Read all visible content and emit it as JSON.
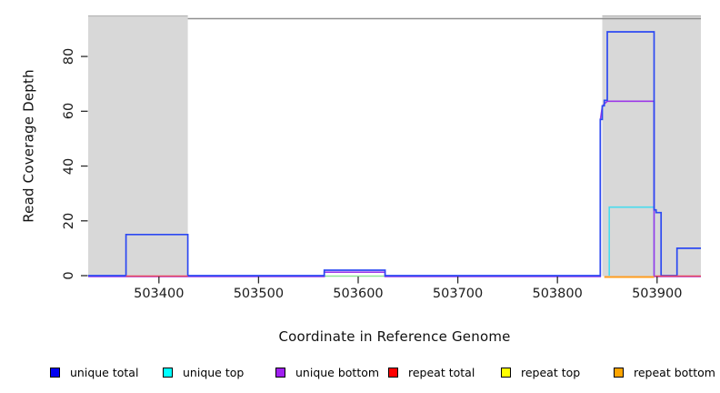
{
  "chart_data": {
    "type": "area",
    "title": "",
    "xlabel": "Coordinate in Reference Genome",
    "ylabel": "Read Coverage Depth",
    "xlim": [
      503329,
      503944
    ],
    "ylim": [
      0,
      94.8
    ],
    "x_ticks": [
      503400,
      503500,
      503600,
      503700,
      503800,
      503900
    ],
    "y_ticks": [
      0,
      20,
      40,
      60,
      80
    ],
    "grid": false,
    "legend_position": "bottom",
    "shade_color": "#d8d8d8",
    "shade_edge_color": "#b5b5b5",
    "frame_color": "#8f8f8f",
    "tick_color": "#2b2b2b",
    "shaded_regions": [
      {
        "x0": 503329,
        "x1": 503429
      },
      {
        "x0": 503845,
        "x1": 503944
      }
    ],
    "series": [
      {
        "name": "repeat top",
        "legend_color": "#ffff00",
        "plot_color": "#8fe596",
        "line_width": 1.5,
        "dy": 0.5,
        "segments": [
          [
            [
              503566,
              0
            ],
            [
              503627,
              0
            ]
          ]
        ]
      },
      {
        "name": "unique top",
        "legend_color": "#00ffff",
        "plot_color": "#49dcee",
        "line_width": 1.6,
        "dy": 0,
        "segments": [
          [
            [
              503852,
              0
            ],
            [
              503852,
              25
            ],
            [
              503897,
              25
            ],
            [
              503897,
              0
            ]
          ]
        ]
      },
      {
        "name": "unique bottom",
        "legend_color": "#a020f0",
        "plot_color": "#9c39e8",
        "line_width": 1.6,
        "dy": 1,
        "segments": [
          [
            [
              503329,
              0
            ],
            [
              503566,
              0
            ],
            [
              503566,
              1.6
            ],
            [
              503627,
              1.6
            ],
            [
              503627,
              0
            ],
            [
              503843,
              0
            ],
            [
              503843,
              57
            ],
            [
              503845,
              62
            ],
            [
              503847,
              63
            ],
            [
              503850,
              64
            ],
            [
              503897,
              64
            ],
            [
              503897,
              0
            ],
            [
              503944,
              0
            ]
          ]
        ]
      },
      {
        "name": "unique total",
        "legend_color": "#0000f0",
        "plot_color": "#2c49f2",
        "line_width": 1.7,
        "dy": 0,
        "segments": [
          [
            [
              503329,
              0
            ],
            [
              503367,
              0
            ],
            [
              503367,
              15
            ],
            [
              503429,
              15
            ],
            [
              503429,
              0
            ],
            [
              503566,
              0
            ],
            [
              503566,
              2
            ],
            [
              503627,
              2
            ],
            [
              503627,
              0
            ],
            [
              503843,
              0
            ],
            [
              503843,
              57
            ],
            [
              503845,
              57
            ],
            [
              503845,
              62
            ],
            [
              503847,
              62
            ],
            [
              503847,
              64
            ],
            [
              503850,
              64
            ],
            [
              503850,
              89
            ],
            [
              503897,
              89
            ],
            [
              503897,
              24
            ],
            [
              503899,
              24
            ],
            [
              503899,
              23
            ],
            [
              503904,
              23
            ],
            [
              503904,
              0
            ],
            [
              503920,
              0
            ],
            [
              503920,
              10
            ],
            [
              503944,
              10
            ]
          ]
        ]
      },
      {
        "name": "repeat bottom",
        "legend_color": "#ffa500",
        "plot_color": "#ff9d1f",
        "line_width": 2,
        "dy": 1.5,
        "segments": [
          [
            [
              503847,
              0
            ],
            [
              503897,
              0
            ]
          ]
        ]
      },
      {
        "name": "repeat total",
        "legend_color": "#ff0000",
        "plot_color": "#e9445e",
        "line_width": 1.5,
        "dy": 0.5,
        "segments": [
          [
            [
              503367,
              0
            ],
            [
              503429,
              0
            ]
          ],
          [
            [
              503898,
              0
            ],
            [
              503944,
              0
            ]
          ]
        ]
      }
    ],
    "legend_items": [
      {
        "label": "unique total",
        "color": "#0000f0"
      },
      {
        "label": "unique top",
        "color": "#00ffff"
      },
      {
        "label": "unique bottom",
        "color": "#a020f0"
      },
      {
        "label": "repeat total",
        "color": "#ff0000"
      },
      {
        "label": "repeat top",
        "color": "#ffff00"
      },
      {
        "label": "repeat bottom",
        "color": "#ffa500"
      }
    ]
  }
}
